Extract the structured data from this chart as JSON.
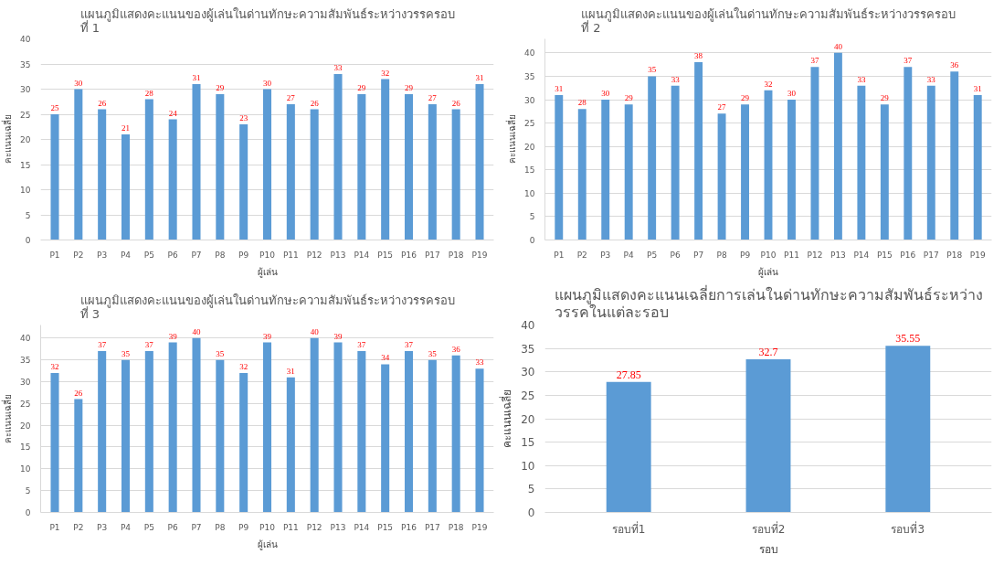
{
  "chart_data": [
    {
      "type": "bar",
      "title": "แผนภูมิแสดงคะแนนของผู้เล่นในด่านทักษะความสัมพันธ์ระหว่างวรรครอบ\nที่ 1",
      "xlabel": "ผู้เล่น",
      "ylabel": "คะแนนเฉลี่ย",
      "categories": [
        "P1",
        "P2",
        "P3",
        "P4",
        "P5",
        "P6",
        "P7",
        "P8",
        "P9",
        "P10",
        "P11",
        "P12",
        "P13",
        "P14",
        "P15",
        "P16",
        "P17",
        "P18",
        "P19"
      ],
      "values": [
        25,
        30,
        26,
        21,
        28,
        24,
        31,
        29,
        23,
        30,
        27,
        26,
        33,
        29,
        32,
        29,
        27,
        26,
        31
      ],
      "color": "#5b9bd5",
      "ylim": [
        0,
        40
      ],
      "yticks": [
        0,
        5,
        10,
        15,
        20,
        25,
        30,
        35,
        40
      ],
      "grid": "y",
      "data_labels": true
    },
    {
      "type": "bar",
      "title": "แผนภูมิแสดงคะแนนของผู้เล่นในด่านทักษะความสัมพันธ์ระหว่างวรรครอบ\nที่ 2",
      "xlabel": "ผู้เล่น",
      "ylabel": "คะแนนเฉลี่ย",
      "categories": [
        "P1",
        "P2",
        "P3",
        "P4",
        "P5",
        "P6",
        "P7",
        "P8",
        "P9",
        "P10",
        "P11",
        "P12",
        "P13",
        "P14",
        "P15",
        "P16",
        "P17",
        "P18",
        "P19"
      ],
      "values": [
        31,
        28,
        30,
        29,
        35,
        33,
        38,
        27,
        29,
        32,
        30,
        37,
        40,
        33,
        29,
        37,
        33,
        36,
        31
      ],
      "color": "#5b9bd5",
      "ylim": [
        0,
        43
      ],
      "yticks": [
        0,
        5,
        10,
        15,
        20,
        25,
        30,
        35,
        40
      ],
      "grid": "y",
      "data_labels": true
    },
    {
      "type": "bar",
      "title": "แผนภูมิแสดงคะแนนของผู้เล่นในด่านทักษะความสัมพันธ์ระหว่างวรรครอบ\nที่ 3",
      "xlabel": "ผู้เล่น",
      "ylabel": "คะแนนเฉลี่ย",
      "categories": [
        "P1",
        "P2",
        "P3",
        "P4",
        "P5",
        "P6",
        "P7",
        "P8",
        "P9",
        "P10",
        "P11",
        "P12",
        "P13",
        "P14",
        "P15",
        "P16",
        "P17",
        "P18",
        "P19"
      ],
      "values": [
        32,
        26,
        37,
        35,
        37,
        39,
        40,
        35,
        32,
        39,
        31,
        40,
        39,
        37,
        34,
        37,
        35,
        36,
        33
      ],
      "color": "#5b9bd5",
      "ylim": [
        0,
        43
      ],
      "yticks": [
        0,
        5,
        10,
        15,
        20,
        25,
        30,
        35,
        40
      ],
      "grid": "y",
      "data_labels": true
    },
    {
      "type": "bar",
      "title": "แผนภูมิแสดงคะแนนเฉลี่ยการเล่นในด่านทักษะความสัมพันธ์ระหว่าง\nวรรคในแต่ละรอบ",
      "xlabel": "รอบ",
      "ylabel": "คะแนนเฉลี่ย",
      "categories": [
        "รอบที่1",
        "รอบที่2",
        "รอบที่3"
      ],
      "values": [
        27.85,
        32.7,
        35.55
      ],
      "color": "#5b9bd5",
      "ylim": [
        0,
        40
      ],
      "yticks": [
        0,
        5,
        10,
        15,
        20,
        25,
        30,
        35,
        40
      ],
      "grid": "y",
      "data_labels": true
    }
  ]
}
